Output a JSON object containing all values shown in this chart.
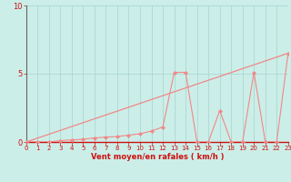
{
  "background_color": "#cceee8",
  "grid_color": "#aad8d4",
  "line_color": "#f08888",
  "marker_color": "#f08888",
  "xlabel": "Vent moyen/en rafales ( km/h )",
  "xlim": [
    0,
    23
  ],
  "ylim": [
    0,
    10
  ],
  "yticks": [
    0,
    5,
    10
  ],
  "xticks": [
    0,
    1,
    2,
    3,
    4,
    5,
    6,
    7,
    8,
    9,
    10,
    11,
    12,
    13,
    14,
    15,
    16,
    17,
    18,
    19,
    20,
    21,
    22,
    23
  ],
  "ref_line_x": [
    0,
    23
  ],
  "ref_line_y": [
    0,
    6.5
  ],
  "data_x": [
    0,
    1,
    2,
    3,
    4,
    5,
    6,
    7,
    8,
    9,
    10,
    11,
    12,
    13,
    14,
    15,
    16,
    17,
    18,
    19,
    20,
    21,
    22,
    23
  ],
  "data_y": [
    0,
    0,
    0,
    0.1,
    0.15,
    0.2,
    0.3,
    0.35,
    0.4,
    0.5,
    0.6,
    0.8,
    1.1,
    5.1,
    5.1,
    0.0,
    0.0,
    2.3,
    0.0,
    0.0,
    5.1,
    0.0,
    0.0,
    6.5
  ]
}
